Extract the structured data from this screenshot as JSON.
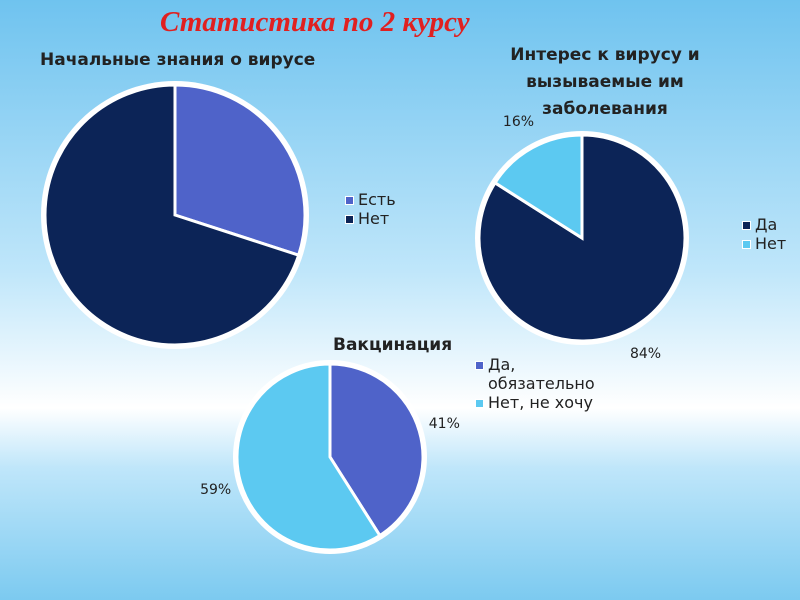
{
  "title": "Статистика по 2 курсу",
  "chart_data": [
    {
      "type": "pie",
      "title": "Начальные знания о вирусе",
      "categories": [
        "Есть",
        "Нет"
      ],
      "values": [
        30,
        70
      ],
      "colors": [
        "#4f63c9",
        "#0c2457"
      ]
    },
    {
      "type": "pie",
      "title": "Интерес к вирусу и вызываемые им заболевания",
      "categories": [
        "Да",
        "Нет"
      ],
      "values": [
        84,
        16
      ],
      "value_labels": [
        "84%",
        "16%"
      ],
      "colors": [
        "#0c2457",
        "#5cc9f1"
      ]
    },
    {
      "type": "pie",
      "title": "Вакцинация",
      "categories": [
        "Да, обязательно",
        "Нет, не хочу"
      ],
      "values": [
        41,
        59
      ],
      "value_labels": [
        "41%",
        "59%"
      ],
      "colors": [
        "#4f63c9",
        "#5cc9f1"
      ]
    }
  ]
}
